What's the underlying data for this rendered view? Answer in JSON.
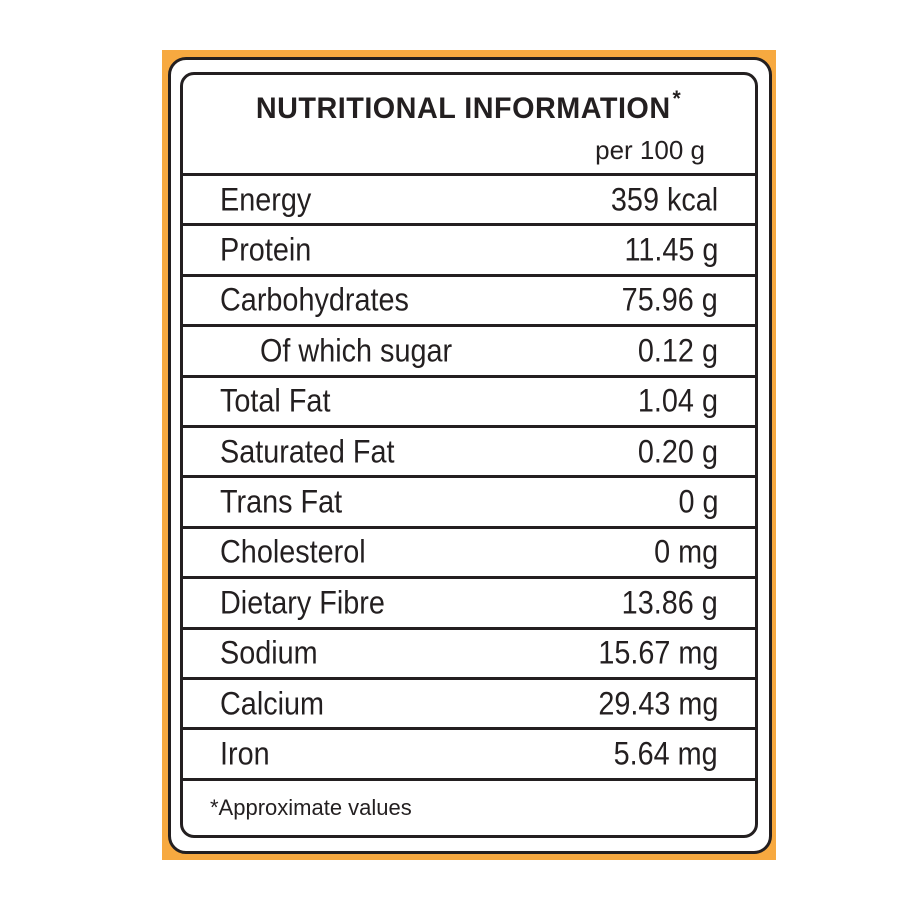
{
  "label": {
    "title": "NUTRITIONAL INFORMATION",
    "title_marker": "*",
    "per_unit": "per 100 g",
    "footnote": "*Approximate values",
    "accent_color": "#f7a940"
  },
  "rows": [
    {
      "name": "Energy",
      "value": "359 kcal",
      "indent": false
    },
    {
      "name": "Protein",
      "value": "11.45 g",
      "indent": false
    },
    {
      "name": "Carbohydrates",
      "value": "75.96 g",
      "indent": false
    },
    {
      "name": "Of which sugar",
      "value": "0.12 g",
      "indent": true
    },
    {
      "name": "Total Fat",
      "value": "1.04 g",
      "indent": false
    },
    {
      "name": "Saturated Fat",
      "value": "0.20 g",
      "indent": false
    },
    {
      "name": "Trans Fat",
      "value": "0 g",
      "indent": false
    },
    {
      "name": "Cholesterol",
      "value": "0 mg",
      "indent": false
    },
    {
      "name": "Dietary Fibre",
      "value": "13.86 g",
      "indent": false
    },
    {
      "name": "Sodium",
      "value": "15.67 mg",
      "indent": false
    },
    {
      "name": "Calcium",
      "value": "29.43 mg",
      "indent": false
    },
    {
      "name": "Iron",
      "value": "5.64 mg",
      "indent": false
    }
  ]
}
